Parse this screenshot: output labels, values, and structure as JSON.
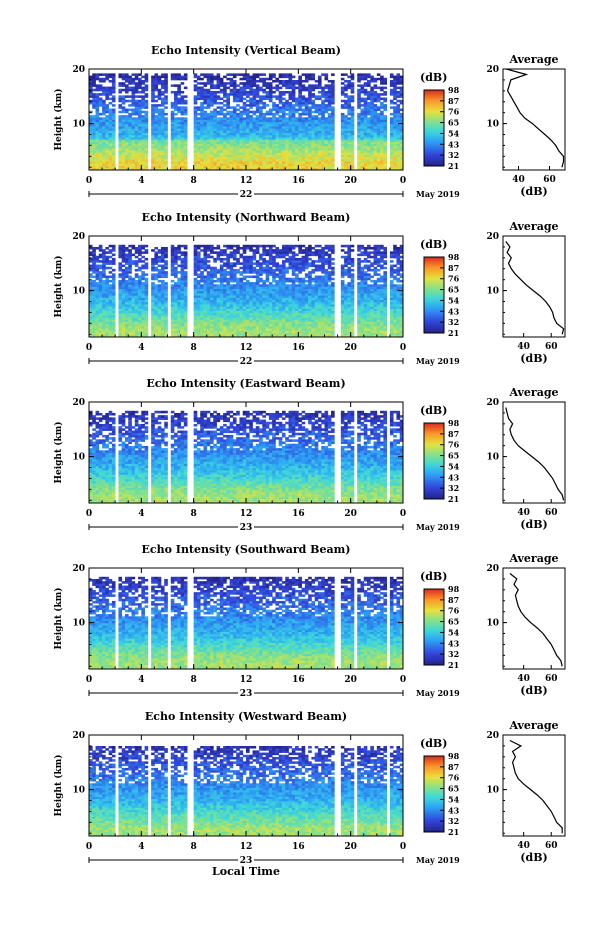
{
  "chart_data": [
    {
      "type": "heatmap",
      "title": "Echo Intensity (Vertical Beam)",
      "ylabel": "Height (km)",
      "xlabel": "",
      "x_ticks": [
        "0",
        "4",
        "8",
        "12",
        "16",
        "20",
        "0"
      ],
      "y_ticks": [
        "20",
        "10"
      ],
      "xlim": [
        0,
        24
      ],
      "ylim": [
        1.5,
        20
      ],
      "day_label": "22",
      "date_label": "May 2019",
      "colorbar": {
        "unit": "(dB)",
        "ticks": [
          "98",
          "87",
          "76",
          "65",
          "54",
          "43",
          "32",
          "21"
        ],
        "range": [
          21,
          98
        ]
      },
      "gap_hours": [
        [
          0.9,
          1.1
        ],
        [
          1.9,
          2.3
        ],
        [
          4.6,
          4.8
        ],
        [
          5.9,
          6.2
        ],
        [
          7.6,
          7.9
        ],
        [
          11.7,
          11.8
        ],
        [
          12.4,
          12.6
        ],
        [
          18.8,
          19.3
        ],
        [
          20.3,
          20.5
        ],
        [
          22.7,
          22.9
        ]
      ],
      "top_km": 19.0,
      "profile": {
        "title": "Average",
        "xlabel": "(dB)",
        "x_ticks": [
          "40",
          "60"
        ],
        "y_ticks": [
          "20",
          "10"
        ],
        "xlim": [
          30,
          70
        ],
        "heights": [
          2,
          3,
          4,
          5,
          6,
          7,
          8,
          9,
          10,
          11,
          12,
          13,
          14,
          15,
          16,
          17,
          18,
          19,
          20
        ],
        "values": [
          68,
          69,
          69,
          66,
          64,
          61,
          57,
          53,
          49,
          44,
          41,
          39,
          37,
          35,
          33,
          34,
          35,
          45,
          32
        ]
      }
    },
    {
      "type": "heatmap",
      "title": "Echo Intensity (Northward Beam)",
      "ylabel": "Height (km)",
      "xlabel": "",
      "x_ticks": [
        "0",
        "4",
        "8",
        "12",
        "16",
        "20",
        "0"
      ],
      "y_ticks": [
        "20",
        "10"
      ],
      "xlim": [
        0,
        24
      ],
      "ylim": [
        1.5,
        20
      ],
      "day_label": "22",
      "date_label": "May 2019",
      "colorbar": {
        "unit": "(dB)",
        "ticks": [
          "98",
          "87",
          "76",
          "65",
          "54",
          "43",
          "32",
          "21"
        ],
        "range": [
          21,
          98
        ]
      },
      "gap_hours": [
        [
          0.9,
          1.1
        ],
        [
          1.9,
          2.3
        ],
        [
          4.6,
          4.8
        ],
        [
          5.9,
          6.2
        ],
        [
          7.6,
          7.9
        ],
        [
          11.7,
          11.8
        ],
        [
          12.4,
          12.6
        ],
        [
          18.8,
          19.3
        ],
        [
          20.3,
          20.5
        ],
        [
          22.7,
          22.9
        ]
      ],
      "top_km": 18.5,
      "profile": {
        "title": "Average",
        "xlabel": "(dB)",
        "x_ticks": [
          "40",
          "60"
        ],
        "y_ticks": [
          "20",
          "10"
        ],
        "xlim": [
          25,
          70
        ],
        "heights": [
          2,
          3,
          4,
          5,
          6,
          7,
          8,
          9,
          10,
          11,
          12,
          13,
          14,
          15,
          16,
          17,
          18,
          19
        ],
        "values": [
          68,
          69,
          64,
          62,
          61,
          59,
          56,
          52,
          47,
          42,
          38,
          34,
          31,
          29,
          31,
          28,
          30,
          27
        ]
      }
    },
    {
      "type": "heatmap",
      "title": "Echo Intensity (Eastward Beam)",
      "ylabel": "Height (km)",
      "xlabel": "",
      "x_ticks": [
        "0",
        "4",
        "8",
        "12",
        "16",
        "20",
        "0"
      ],
      "y_ticks": [
        "20",
        "10"
      ],
      "xlim": [
        0,
        24
      ],
      "ylim": [
        1.5,
        20
      ],
      "day_label": "23",
      "date_label": "May 2019",
      "colorbar": {
        "unit": "(dB)",
        "ticks": [
          "98",
          "87",
          "76",
          "65",
          "54",
          "43",
          "32",
          "21"
        ],
        "range": [
          21,
          98
        ]
      },
      "gap_hours": [
        [
          0.9,
          1.1
        ],
        [
          1.9,
          2.3
        ],
        [
          4.6,
          4.8
        ],
        [
          5.9,
          6.2
        ],
        [
          7.6,
          7.9
        ],
        [
          11.7,
          11.8
        ],
        [
          12.4,
          12.6
        ],
        [
          18.8,
          19.3
        ],
        [
          20.3,
          20.5
        ],
        [
          22.7,
          22.9
        ]
      ],
      "top_km": 18.2,
      "profile": {
        "title": "Average",
        "xlabel": "(dB)",
        "x_ticks": [
          "40",
          "60"
        ],
        "y_ticks": [
          "20",
          "10"
        ],
        "xlim": [
          25,
          70
        ],
        "heights": [
          2,
          3,
          4,
          5,
          6,
          7,
          8,
          9,
          10,
          11,
          12,
          13,
          14,
          15,
          16,
          17,
          18,
          19
        ],
        "values": [
          69,
          68,
          65,
          63,
          61,
          58,
          55,
          51,
          46,
          41,
          36,
          33,
          31,
          30,
          32,
          29,
          28,
          27
        ]
      }
    },
    {
      "type": "heatmap",
      "title": "Echo Intensity (Southward Beam)",
      "ylabel": "Height (km)",
      "xlabel": "",
      "x_ticks": [
        "0",
        "4",
        "8",
        "12",
        "16",
        "20",
        "0"
      ],
      "y_ticks": [
        "20",
        "10"
      ],
      "xlim": [
        0,
        24
      ],
      "ylim": [
        1.5,
        20
      ],
      "day_label": "23",
      "date_label": "May 2019",
      "colorbar": {
        "unit": "(dB)",
        "ticks": [
          "98",
          "87",
          "76",
          "65",
          "54",
          "43",
          "32",
          "21"
        ],
        "range": [
          21,
          98
        ]
      },
      "gap_hours": [
        [
          0.9,
          1.1
        ],
        [
          1.9,
          2.3
        ],
        [
          4.6,
          4.8
        ],
        [
          5.9,
          6.2
        ],
        [
          7.6,
          7.9
        ],
        [
          11.7,
          11.8
        ],
        [
          12.4,
          12.6
        ],
        [
          18.8,
          19.3
        ],
        [
          20.3,
          20.5
        ],
        [
          22.7,
          22.9
        ]
      ],
      "top_km": 18.5,
      "profile": {
        "title": "Average",
        "xlabel": "(dB)",
        "x_ticks": [
          "40",
          "60"
        ],
        "y_ticks": [
          "20",
          "10"
        ],
        "xlim": [
          25,
          70
        ],
        "heights": [
          2,
          3,
          4,
          5,
          6,
          7,
          8,
          9,
          10,
          11,
          12,
          13,
          14,
          15,
          16,
          17,
          18,
          19
        ],
        "values": [
          68,
          67,
          64,
          62,
          60,
          57,
          54,
          50,
          45,
          41,
          38,
          36,
          35,
          34,
          36,
          33,
          35,
          30
        ]
      }
    },
    {
      "type": "heatmap",
      "title": "Echo Intensity (Westward Beam)",
      "ylabel": "Height (km)",
      "xlabel": "Local Time",
      "x_ticks": [
        "0",
        "4",
        "8",
        "12",
        "16",
        "20",
        "0"
      ],
      "y_ticks": [
        "20",
        "10"
      ],
      "xlim": [
        0,
        24
      ],
      "ylim": [
        1.5,
        20
      ],
      "day_label": "23",
      "date_label": "May 2019",
      "colorbar": {
        "unit": "(dB)",
        "ticks": [
          "98",
          "87",
          "76",
          "65",
          "54",
          "43",
          "32",
          "21"
        ],
        "range": [
          21,
          98
        ]
      },
      "gap_hours": [
        [
          0.9,
          1.1
        ],
        [
          1.9,
          2.3
        ],
        [
          4.6,
          4.8
        ],
        [
          5.9,
          6.2
        ],
        [
          7.6,
          7.9
        ],
        [
          11.7,
          11.8
        ],
        [
          12.4,
          12.6
        ],
        [
          18.8,
          19.3
        ],
        [
          20.3,
          20.5
        ],
        [
          22.7,
          22.9
        ]
      ],
      "top_km": 18.0,
      "profile": {
        "title": "Average",
        "xlabel": "(dB)",
        "x_ticks": [
          "40",
          "60"
        ],
        "y_ticks": [
          "20",
          "10"
        ],
        "xlim": [
          25,
          70
        ],
        "heights": [
          2,
          3,
          4,
          5,
          6,
          7,
          8,
          9,
          10,
          11,
          12,
          13,
          14,
          15,
          16,
          17,
          18,
          19
        ],
        "values": [
          68,
          68,
          64,
          62,
          60,
          57,
          54,
          50,
          45,
          40,
          36,
          34,
          33,
          32,
          34,
          32,
          38,
          30
        ]
      }
    }
  ]
}
